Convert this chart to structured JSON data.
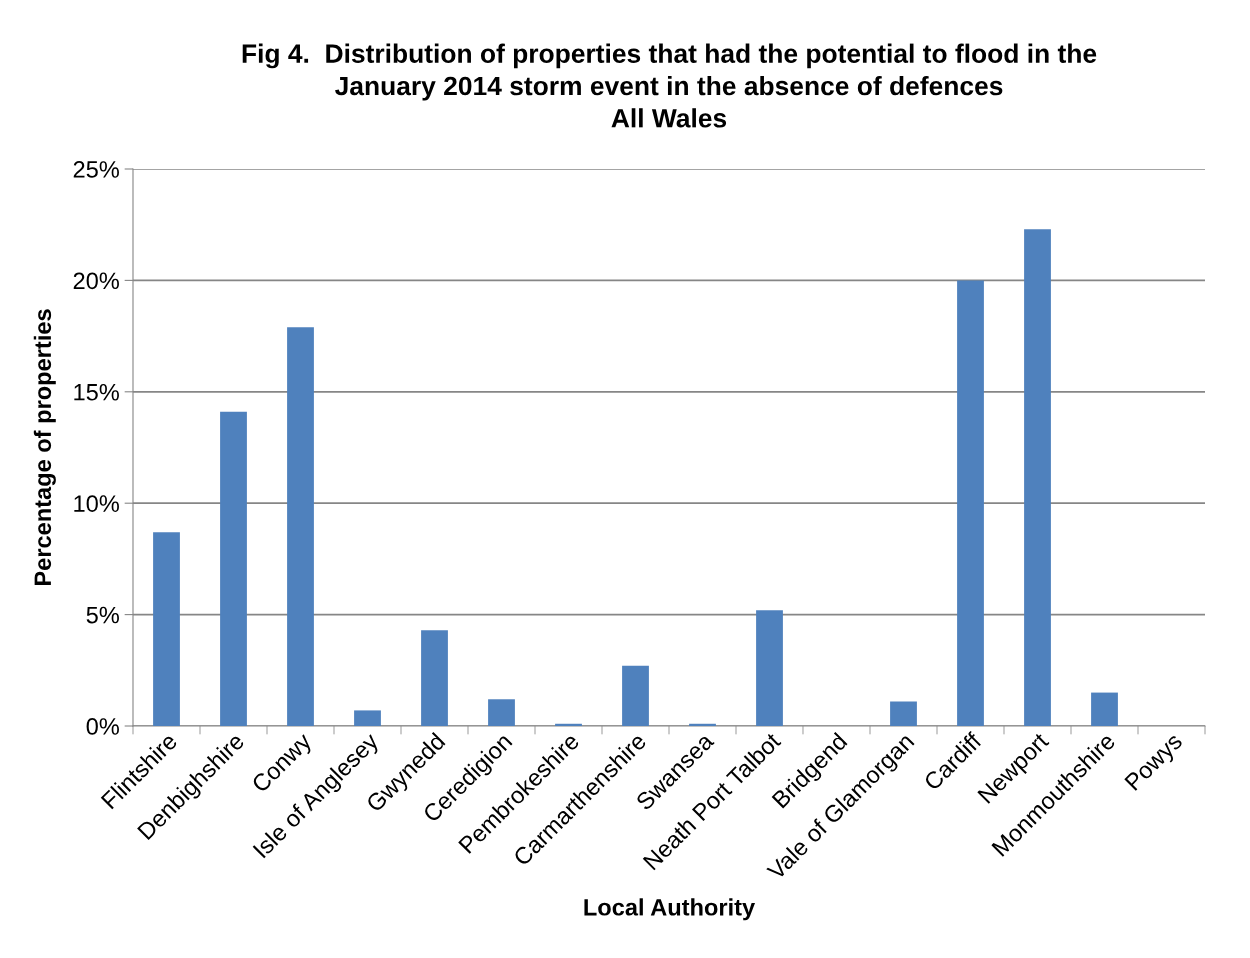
{
  "chart_data": {
    "type": "bar",
    "title": "Fig 4.  Distribution of properties that had the potential to flood in the\nJanuary 2014 storm event in the absence of defences\nAll Wales",
    "xlabel": "Local Authority",
    "ylabel": "Percentage of properties",
    "categories": [
      "Flintshire",
      "Denbighshire",
      "Conwy",
      "Isle of Anglesey",
      "Gwynedd",
      "Ceredigion",
      "Pembrokeshire",
      "Carmarthenshire",
      "Swansea",
      "Neath Port Talbot",
      "Bridgend",
      "Vale of Glamorgan",
      "Cardiff",
      "Newport",
      "Monmouthshire",
      "Powys"
    ],
    "values": [
      8.7,
      14.1,
      17.9,
      0.7,
      4.3,
      1.2,
      0.1,
      2.7,
      0.1,
      5.2,
      0,
      1.1,
      20.0,
      22.3,
      1.5,
      0
    ],
    "color": "#4f81bd",
    "ylim": [
      0,
      25
    ],
    "yticks": [
      {
        "value": 0,
        "label": "0%"
      },
      {
        "value": 5,
        "label": "5%"
      },
      {
        "value": 10,
        "label": "10%"
      },
      {
        "value": 15,
        "label": "15%"
      },
      {
        "value": 20,
        "label": "20%"
      },
      {
        "value": 25,
        "label": "25%"
      }
    ],
    "grid": "y",
    "legend": false
  }
}
